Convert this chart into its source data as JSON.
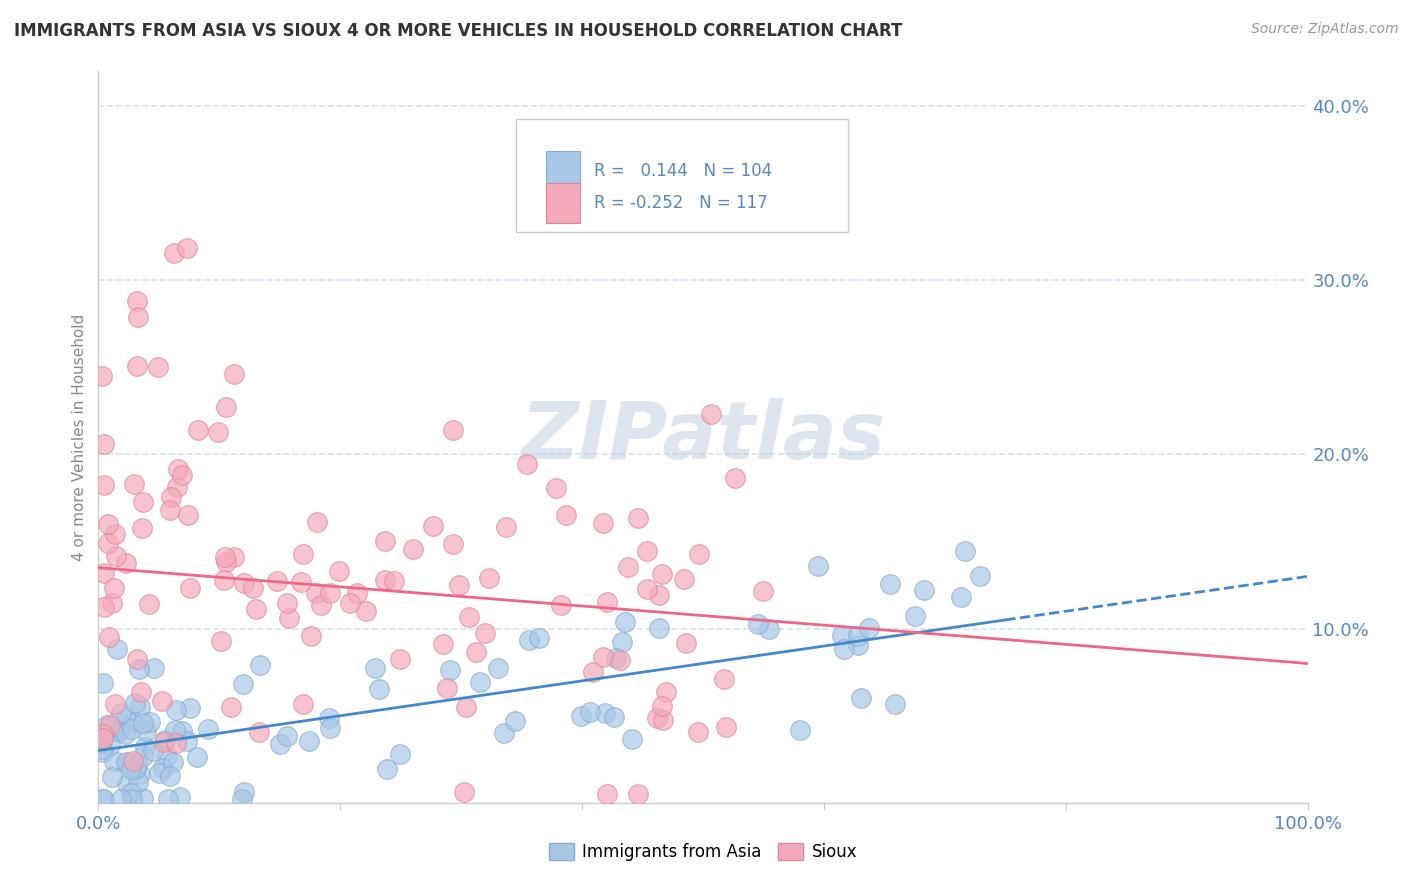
{
  "title": "IMMIGRANTS FROM ASIA VS SIOUX 4 OR MORE VEHICLES IN HOUSEHOLD CORRELATION CHART",
  "source": "Source: ZipAtlas.com",
  "ylabel": "4 or more Vehicles in Household",
  "legend_entries": [
    {
      "label": "Immigrants from Asia",
      "R": 0.144,
      "N": 104,
      "color": "#a8c8e8",
      "edge": "#88aacc"
    },
    {
      "label": "Sioux",
      "R": -0.252,
      "N": 117,
      "color": "#f4aabb",
      "edge": "#dd8899"
    }
  ],
  "trend_color_blue": "#4488cc",
  "trend_color_pink": "#ee6688",
  "watermark": "ZIPatlas",
  "watermark_color_r": 180,
  "watermark_color_g": 200,
  "watermark_color_b": 220,
  "background_color": "#ffffff",
  "grid_color": "#d8e4f0",
  "axis_label_color": "#5588bb",
  "title_color": "#333333",
  "source_color": "#999999",
  "ylabel_color": "#888888",
  "xlim": [
    0.0,
    100.0
  ],
  "ylim": [
    0.0,
    42.0
  ],
  "blue_intercept": 3.0,
  "blue_slope": 0.1,
  "pink_intercept": 13.5,
  "pink_slope": -0.055,
  "blue_dash_start": 75,
  "fig_width": 14.06,
  "fig_height": 8.92,
  "dpi": 100
}
